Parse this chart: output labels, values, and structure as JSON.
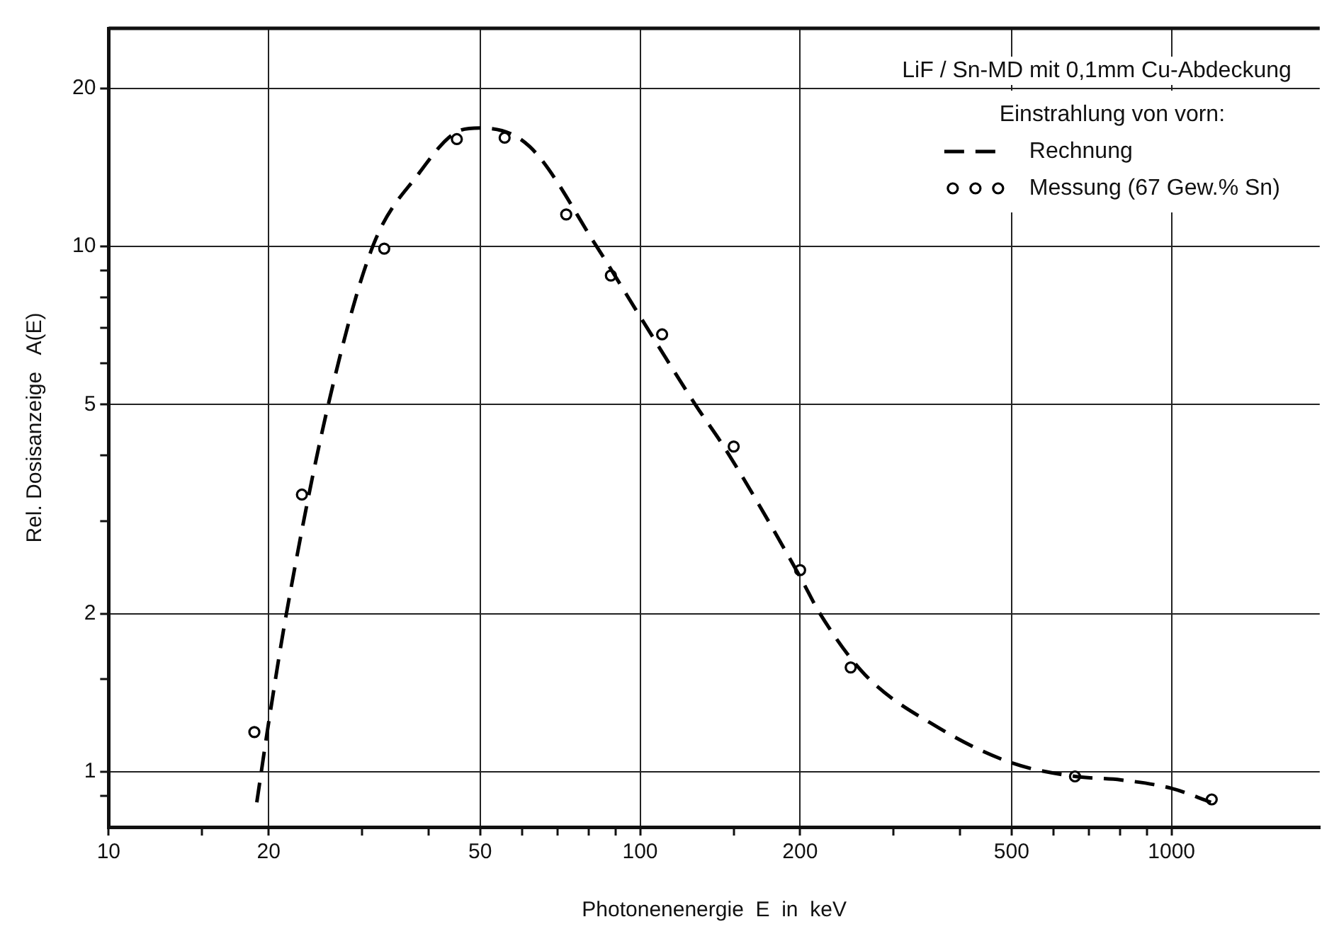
{
  "chart_data": {
    "type": "line",
    "xlabel": "Photonenenergie  E  in  keV",
    "ylabel": "Rel. Dosisanzeige   A(E)",
    "legend_title": "Einstrahlung von vorn:",
    "annotations": [
      "LiF / Sn-MD mit 0,1mm Cu-Abdeckung"
    ],
    "log": "xy",
    "grid": true,
    "legend": "top right",
    "xlim": [
      10,
      1900
    ],
    "ylim": [
      0.785,
      26
    ],
    "xticks": [
      10,
      {
        "value": 15,
        "label": null
      },
      20,
      {
        "value": 30,
        "label": null
      },
      {
        "value": 40,
        "label": null
      },
      50,
      {
        "value": 60,
        "label": null
      },
      {
        "value": 70,
        "label": null
      },
      {
        "value": 80,
        "label": null
      },
      {
        "value": 90,
        "label": null
      },
      100,
      {
        "value": 150,
        "label": null
      },
      200,
      {
        "value": 300,
        "label": null
      },
      {
        "value": 400,
        "label": null
      },
      500,
      {
        "value": 600,
        "label": null
      },
      {
        "value": 700,
        "label": null
      },
      {
        "value": 800,
        "label": null
      },
      {
        "value": 900,
        "label": null
      },
      1000
    ],
    "yticks": [
      {
        "value": 0.9,
        "label": null
      },
      1,
      {
        "value": 1.5,
        "label": null
      },
      2,
      {
        "value": 3,
        "label": null
      },
      {
        "value": 4,
        "label": null
      },
      5,
      {
        "value": 6,
        "label": null
      },
      {
        "value": 7,
        "label": null
      },
      {
        "value": 8,
        "label": null
      },
      {
        "value": 9,
        "label": null
      },
      10,
      20
    ],
    "series": [
      {
        "name": "Rechnung",
        "type": "line",
        "color": "#000000",
        "line_style": "dashed",
        "marker": "none",
        "x": [
          19.0,
          20,
          21.6,
          25.9,
          31.4,
          38.2,
          45.7,
          50,
          61.9,
          82.8,
          100,
          127,
          145,
          200,
          218,
          265,
          366,
          500,
          658,
          803,
          1000,
          1186
        ],
        "values": [
          0.875,
          1.24,
          2.0,
          5,
          10,
          13.7,
          16.6,
          16.8,
          15.5,
          10,
          7.35,
          5,
          4.1,
          2.35,
          2.0,
          1.53,
          1.21,
          1.04,
          0.98,
          0.965,
          0.93,
          0.875
        ]
      },
      {
        "name": "Messung (67 Gew.% Sn)",
        "type": "scatter",
        "color": "#000000",
        "marker": "circle",
        "x": [
          18.8,
          23.1,
          33,
          45.2,
          55.6,
          72.6,
          88.1,
          110,
          150,
          200,
          249,
          658,
          1190
        ],
        "values": [
          1.19,
          3.37,
          9.9,
          16.0,
          16.1,
          11.5,
          8.8,
          6.8,
          4.16,
          2.42,
          1.58,
          0.98,
          0.886
        ]
      }
    ]
  }
}
